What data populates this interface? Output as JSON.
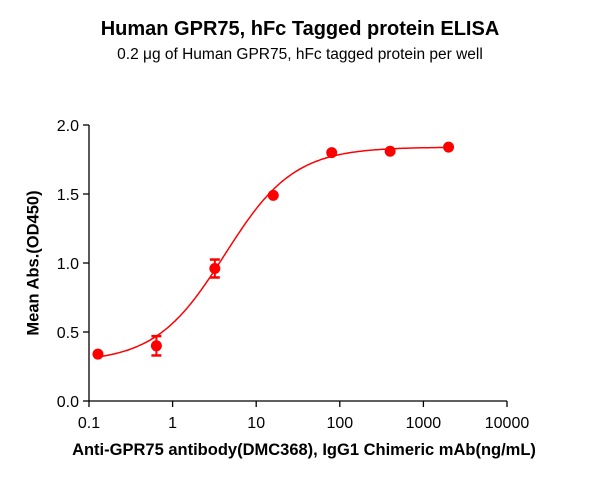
{
  "chart_data": {
    "type": "scatter",
    "title": "Human GPR75, hFc Tagged protein ELISA",
    "subtitle": "0.2 μg of Human GPR75, hFc tagged protein per well",
    "xlabel": "Anti-GPR75 antibody(DMC368), IgG1 Chimeric mAb(ng/mL)",
    "ylabel": "Mean Abs.(OD450)",
    "xscale": "log",
    "xlim": [
      0.1,
      10000
    ],
    "ylim": [
      0.0,
      2.0
    ],
    "xticks": [
      "0.1",
      "1",
      "10",
      "100",
      "1000",
      "10000"
    ],
    "yticks": [
      "0.0",
      "0.5",
      "1.0",
      "1.5",
      "2.0"
    ],
    "grid": false,
    "legend": null,
    "color": "#ff0000",
    "series": [
      {
        "name": "Mean Abs.(OD450)",
        "x": [
          0.128,
          0.64,
          3.2,
          16,
          80,
          400,
          2000
        ],
        "y": [
          0.34,
          0.4,
          0.96,
          1.49,
          1.8,
          1.81,
          1.84
        ],
        "yerr": [
          0.0,
          0.07,
          0.065,
          0.0,
          0.0,
          0.0,
          0.0
        ],
        "fit": "4PL sigmoidal curve"
      }
    ]
  }
}
